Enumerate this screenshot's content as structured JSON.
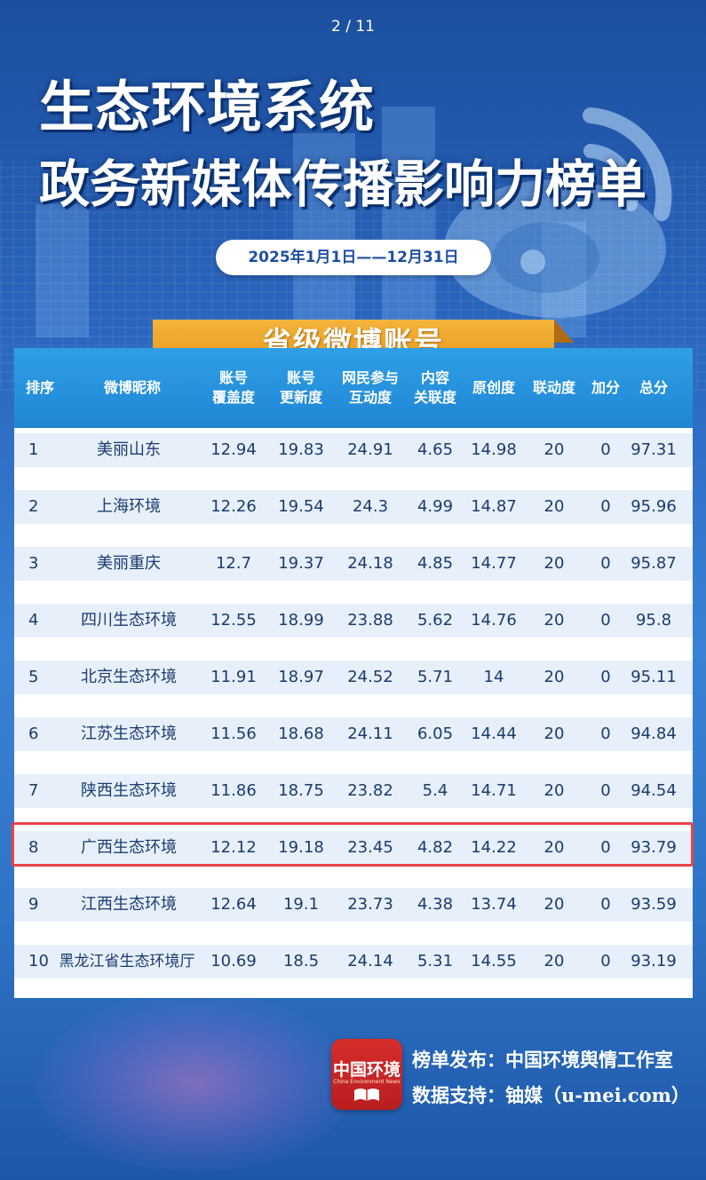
{
  "page_indicator": "2 / 11",
  "title": {
    "line1": "生态环境系统",
    "line2": "政务新媒体传播影响力榜单"
  },
  "date_range": "2025年1月1日——12月31日",
  "banner": "省级微博账号",
  "table": {
    "headers": {
      "rank": "排序",
      "nickname": "微博昵称",
      "coverage": [
        "账号",
        "覆盖度"
      ],
      "update": [
        "账号",
        "更新度"
      ],
      "interaction": [
        "网民参与",
        "互动度"
      ],
      "relevance": [
        "内容",
        "关联度"
      ],
      "originality": "原创度",
      "linkage": "联动度",
      "bonus": "加分",
      "total": "总分"
    },
    "rows": [
      {
        "rank": "1",
        "name": "美丽山东",
        "coverage": "12.94",
        "update": "19.83",
        "interaction": "24.91",
        "relevance": "4.65",
        "originality": "14.98",
        "linkage": "20",
        "bonus": "0",
        "total": "97.31"
      },
      {
        "rank": "2",
        "name": "上海环境",
        "coverage": "12.26",
        "update": "19.54",
        "interaction": "24.3",
        "relevance": "4.99",
        "originality": "14.87",
        "linkage": "20",
        "bonus": "0",
        "total": "95.96"
      },
      {
        "rank": "3",
        "name": "美丽重庆",
        "coverage": "12.7",
        "update": "19.37",
        "interaction": "24.18",
        "relevance": "4.85",
        "originality": "14.77",
        "linkage": "20",
        "bonus": "0",
        "total": "95.87"
      },
      {
        "rank": "4",
        "name": "四川生态环境",
        "coverage": "12.55",
        "update": "18.99",
        "interaction": "23.88",
        "relevance": "5.62",
        "originality": "14.76",
        "linkage": "20",
        "bonus": "0",
        "total": "95.8"
      },
      {
        "rank": "5",
        "name": "北京生态环境",
        "coverage": "11.91",
        "update": "18.97",
        "interaction": "24.52",
        "relevance": "5.71",
        "originality": "14",
        "linkage": "20",
        "bonus": "0",
        "total": "95.11"
      },
      {
        "rank": "6",
        "name": "江苏生态环境",
        "coverage": "11.56",
        "update": "18.68",
        "interaction": "24.11",
        "relevance": "6.05",
        "originality": "14.44",
        "linkage": "20",
        "bonus": "0",
        "total": "94.84"
      },
      {
        "rank": "7",
        "name": "陕西生态环境",
        "coverage": "11.86",
        "update": "18.75",
        "interaction": "23.82",
        "relevance": "5.4",
        "originality": "14.71",
        "linkage": "20",
        "bonus": "0",
        "total": "94.54"
      },
      {
        "rank": "8",
        "name": "广西生态环境",
        "coverage": "12.12",
        "update": "19.18",
        "interaction": "23.45",
        "relevance": "4.82",
        "originality": "14.22",
        "linkage": "20",
        "bonus": "0",
        "total": "93.79"
      },
      {
        "rank": "9",
        "name": "江西生态环境",
        "coverage": "12.64",
        "update": "19.1",
        "interaction": "23.73",
        "relevance": "4.38",
        "originality": "13.74",
        "linkage": "20",
        "bonus": "0",
        "total": "93.59"
      },
      {
        "rank": "10",
        "name": "黑龙江省生态环境厅",
        "coverage": "10.69",
        "update": "18.5",
        "interaction": "24.14",
        "relevance": "5.31",
        "originality": "14.55",
        "linkage": "20",
        "bonus": "0",
        "total": "93.19"
      }
    ],
    "highlighted_rank": "8"
  },
  "footer": {
    "logo_text": "中国环境",
    "logo_subtext": "China Environment News",
    "publisher": "榜单发布：中国环境舆情工作室",
    "support": "数据支持：铀媒（u-mei.com）"
  },
  "colors": {
    "background": "#2a66bf",
    "header_blue": "#1f86d4",
    "banner_orange": "#f3b43b",
    "row_bg": "#e7f0fa",
    "highlight_red": "#e8434a",
    "logo_red": "#d62c2c"
  }
}
